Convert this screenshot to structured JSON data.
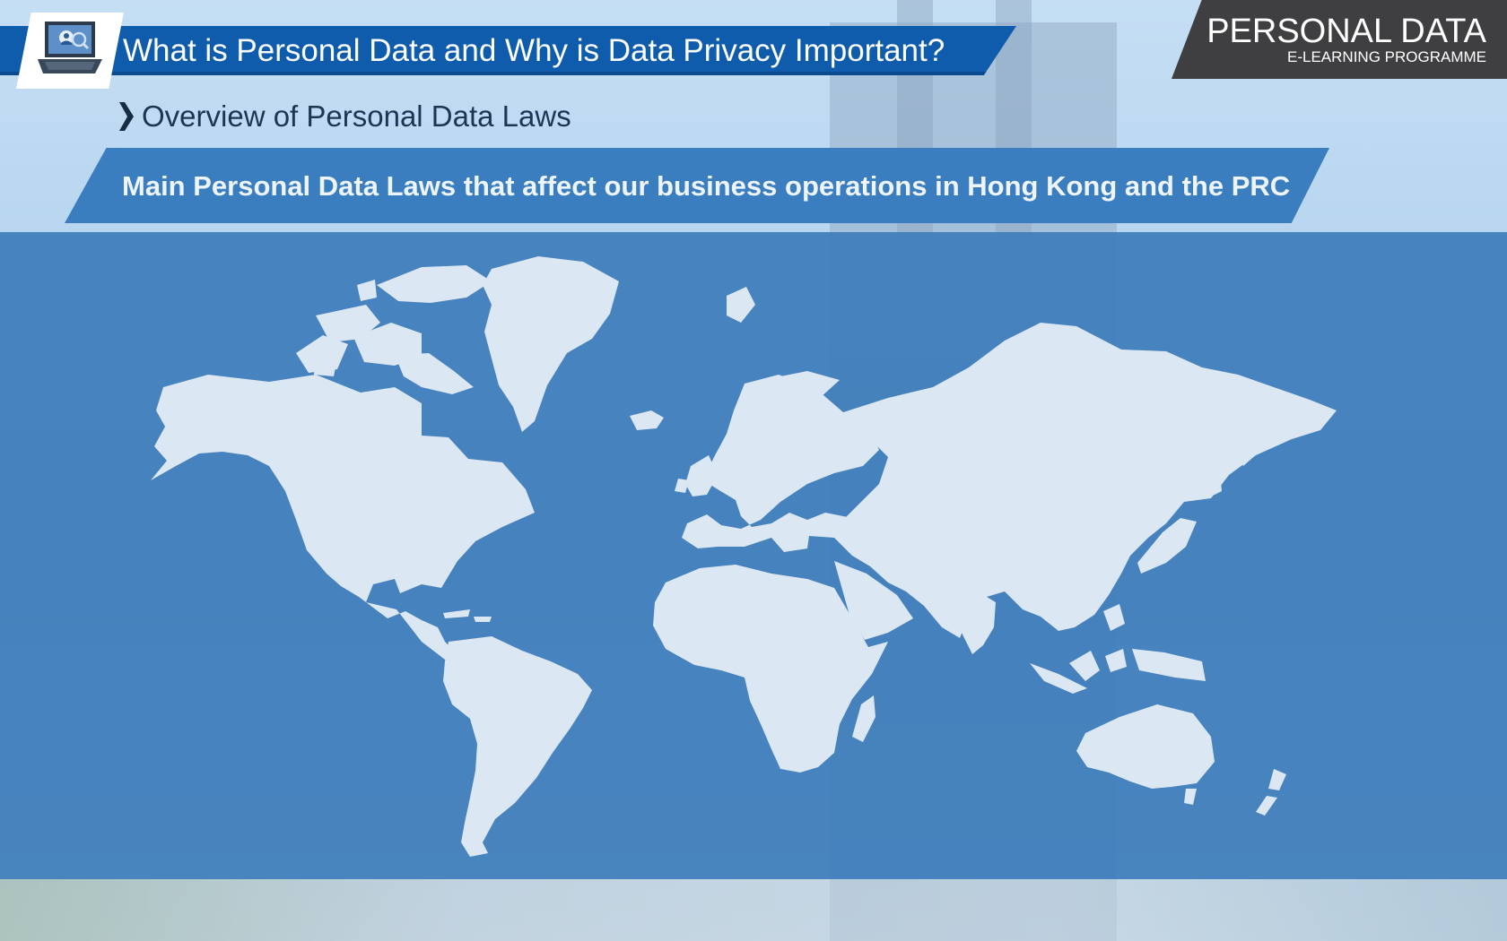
{
  "header": {
    "title": "What is Personal Data and Why is Data Privacy Important?",
    "icon": "laptop-icon"
  },
  "brand": {
    "title": "PERSONAL DATA",
    "subtitle": "E-LEARNING PROGRAMME"
  },
  "subheading": {
    "icon": "chevron-right-icon",
    "label": "Overview of Personal Data Laws"
  },
  "section": {
    "banner": "Main Personal Data Laws that affect our business operations in Hong Kong and the PRC"
  },
  "map": {
    "icon": "world-map-icon"
  },
  "colors": {
    "title_bar": "#0e5cab",
    "brand_tab": "#3f3f41",
    "section_banner": "#3b7ebf",
    "map_panel": "#3e7dba",
    "land": "#dbe7f3"
  }
}
